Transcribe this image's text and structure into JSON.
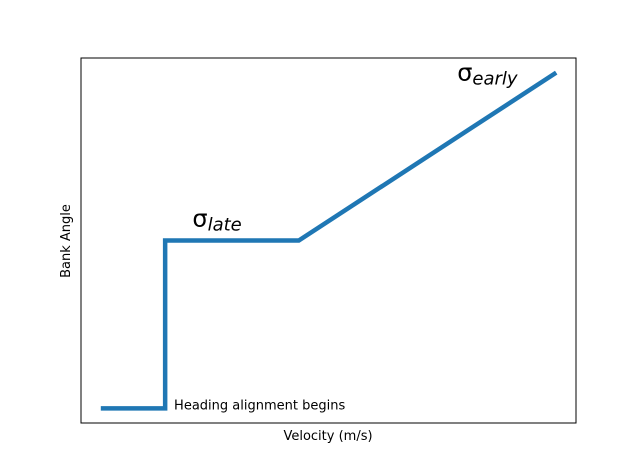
{
  "chart_data": {
    "type": "line",
    "title": "",
    "xlabel": "Velocity (m/s)",
    "ylabel": "Bank Angle",
    "x_ticks_visible": false,
    "y_ticks_visible": false,
    "grid": false,
    "xlim": [
      0,
      100
    ],
    "ylim": [
      0,
      100
    ],
    "series": [
      {
        "color": "#1f77b4",
        "points": [
          {
            "x": 4,
            "y": 4
          },
          {
            "x": 17,
            "y": 4
          },
          {
            "x": 17,
            "y": 50
          },
          {
            "x": 44,
            "y": 50
          },
          {
            "x": 96,
            "y": 96
          }
        ]
      }
    ],
    "annotations": [
      {
        "id": "sigma-early",
        "symbol": "σ",
        "subscript": "early",
        "x": 76,
        "y": 96
      },
      {
        "id": "sigma-late",
        "symbol": "σ",
        "subscript": "late",
        "x": 22.5,
        "y": 50
      },
      {
        "id": "heading-alignment",
        "text": "Heading alignment begins",
        "x": 18.8,
        "y": 4
      }
    ]
  }
}
